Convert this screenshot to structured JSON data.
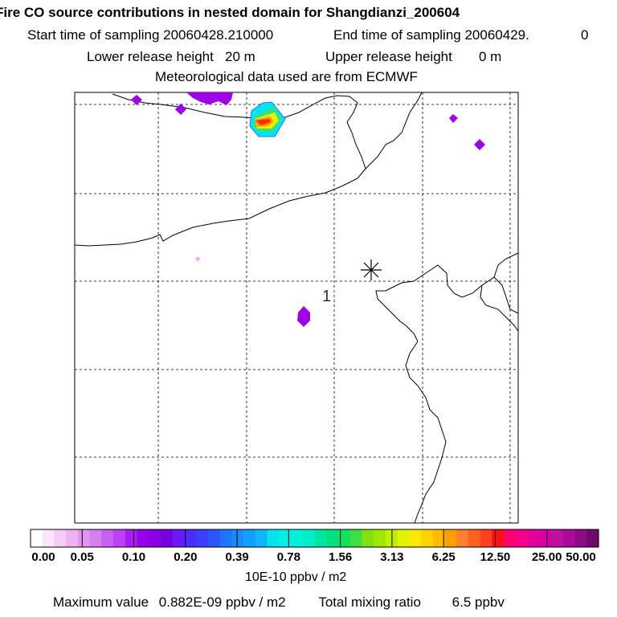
{
  "header": {
    "title": "Fire CO source contributions in nested domain for Shangdianzi_200604",
    "start_label": "Start time of sampling 20060428.210000",
    "end_label": "End time of sampling 20060429.",
    "end_suffix": "0",
    "lower_label": "Lower release height",
    "lower_value": "20 m",
    "upper_label": "Upper release height",
    "upper_value": "0 m",
    "met": "Meteorological data used are from ECMWF"
  },
  "map": {
    "station_marker": "1",
    "station_symbol": "asterisk",
    "plume_colors": {
      "violet": "#a000e8",
      "magenta": "#c000ff",
      "core_red": "#ff2a00",
      "yellow": "#e8f000",
      "green": "#40e070",
      "cyan": "#00e6f0"
    }
  },
  "colorbar": {
    "unit": "10E-10 ppbv / m2",
    "tick_labels": [
      "0.00",
      "0.05",
      "0.10",
      "0.20",
      "0.39",
      "0.78",
      "1.56",
      "3.13",
      "6.25",
      "12.50",
      "25.00",
      "50.00"
    ],
    "colors": [
      "#ffffff",
      "#fbe6fb",
      "#f5ccf5",
      "#efb2f1",
      "#e394ee",
      "#d67ff0",
      "#c95ff3",
      "#bb40f6",
      "#a81cf6",
      "#9700ef",
      "#8a00e6",
      "#7600e0",
      "#6a19ff",
      "#4b2cff",
      "#3b40ff",
      "#2b55ff",
      "#1f75ff",
      "#1a8aff",
      "#12a0ff",
      "#0fb5ff",
      "#00e4ec",
      "#00f0e6",
      "#00f2d9",
      "#00eec8",
      "#00e6a0",
      "#00e080",
      "#16e060",
      "#3ce040",
      "#80e010",
      "#a0e800",
      "#c0ee00",
      "#e0f400",
      "#ffe800",
      "#ffd200",
      "#ffbb00",
      "#ffa000",
      "#ff8030",
      "#ff6020",
      "#ff4020",
      "#ff1010",
      "#ff0070",
      "#f4008c",
      "#e4009a",
      "#d600a6",
      "#c0109e",
      "#a80c98",
      "#8e0a86",
      "#6e0a6a"
    ]
  },
  "footer": {
    "max_label": "Maximum value",
    "max_value": "0.882E-09 ppbv / m2",
    "total_label": "Total mixing ratio",
    "total_value": "6.5 ppbv"
  }
}
